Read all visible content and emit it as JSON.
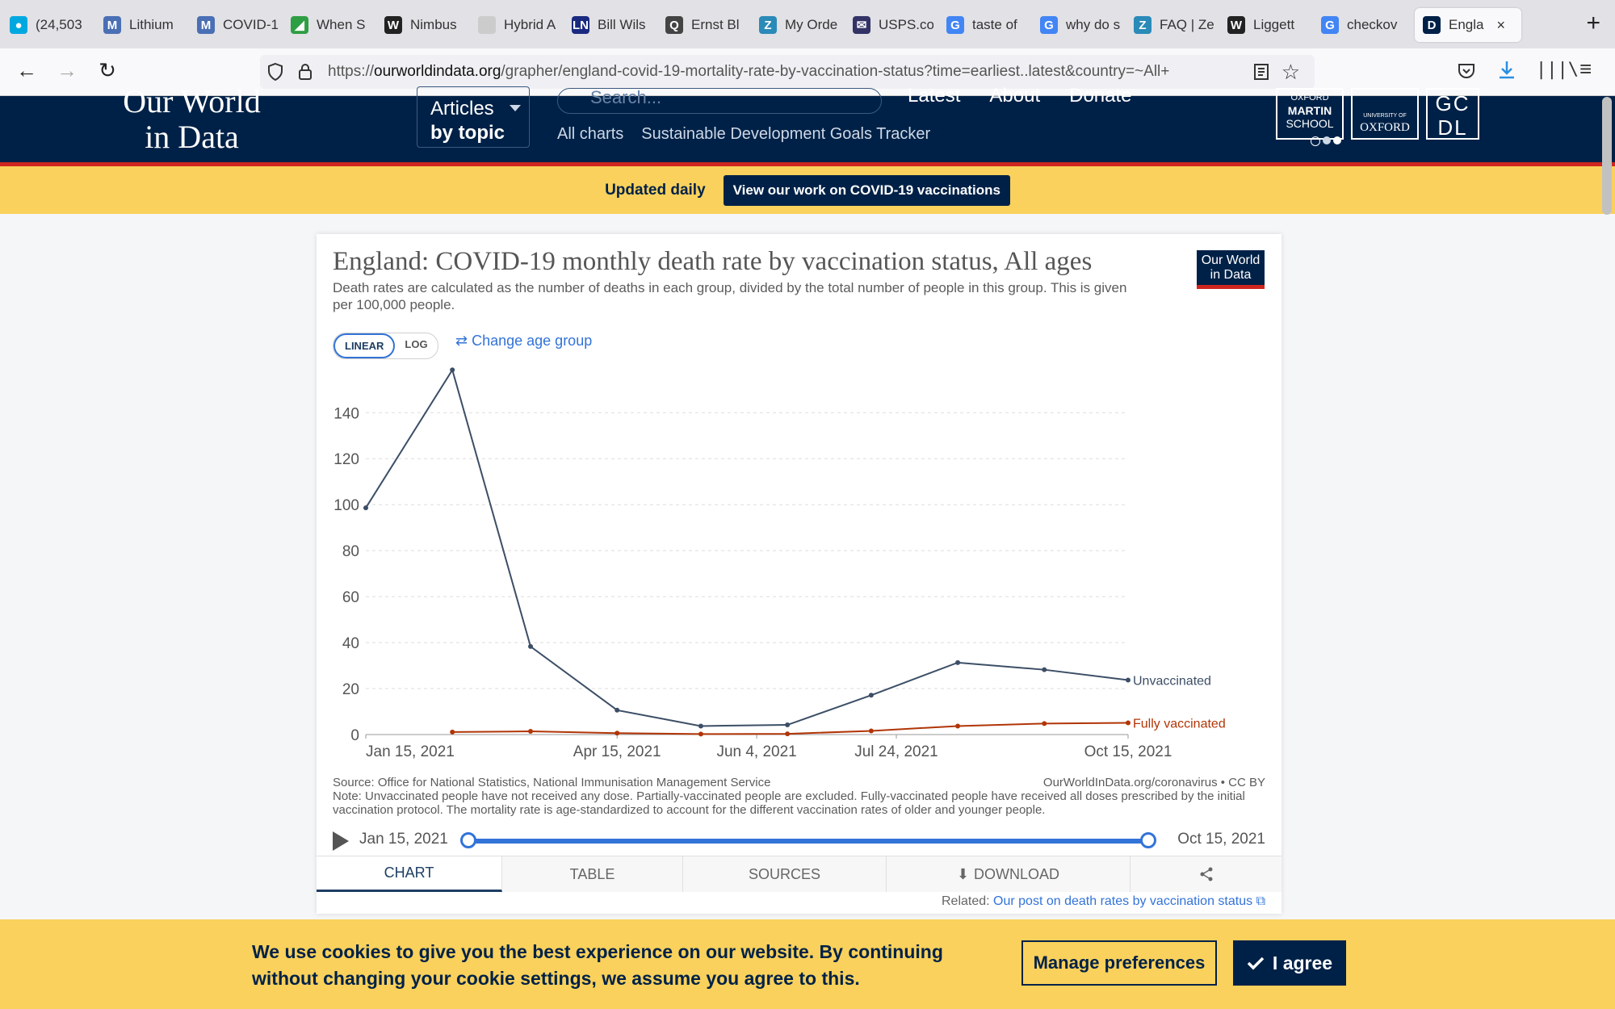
{
  "browser": {
    "tabs": [
      {
        "label": "(24,503",
        "icon": "att-icon",
        "color": "#00a8e0"
      },
      {
        "label": "Lithium",
        "icon": "m-icon",
        "color": "#4a6fb5"
      },
      {
        "label": "COVID-1",
        "icon": "m-icon",
        "color": "#4a6fb5"
      },
      {
        "label": "When S",
        "icon": "leaf-icon",
        "color": "#2e9e44"
      },
      {
        "label": "Nimbus",
        "icon": "w-icon",
        "color": "#222222"
      },
      {
        "label": "Hybrid A",
        "icon": "blank-icon",
        "color": "#cccccc"
      },
      {
        "label": "Bill Wils",
        "icon": "ln-icon",
        "color": "#1a2a80"
      },
      {
        "label": "Ernst Bl",
        "icon": "q-icon",
        "color": "#444444"
      },
      {
        "label": "My Orde",
        "icon": "z-icon",
        "color": "#2a8ab8"
      },
      {
        "label": "USPS.co",
        "icon": "usps-icon",
        "color": "#333366"
      },
      {
        "label": "taste of",
        "icon": "google-icon",
        "color": "#4285f4"
      },
      {
        "label": "why do s",
        "icon": "google-icon",
        "color": "#4285f4"
      },
      {
        "label": "FAQ | Ze",
        "icon": "z-icon",
        "color": "#2a8ab8"
      },
      {
        "label": "Liggett",
        "icon": "w-icon",
        "color": "#222222"
      },
      {
        "label": "checkov",
        "icon": "google-icon",
        "color": "#4285f4"
      },
      {
        "label": "Engla",
        "icon": "owid-icon",
        "color": "#002147"
      }
    ],
    "url_prefix": "https://",
    "url_domain": "ourworldindata.org",
    "url_path": "/grapher/england-covid-19-mortality-rate-by-vaccination-status?time=earliest..latest&country=~All+"
  },
  "site": {
    "logo_line1": "Our World",
    "logo_line2": "in Data",
    "articles_line1": "Articles",
    "articles_line2": "by topic",
    "search_placeholder": "Search...",
    "top_links": [
      "Latest",
      "About",
      "Donate"
    ],
    "sub_links": [
      "All charts",
      "Sustainable Development Goals Tracker"
    ],
    "partner1_line1": "OXFORD",
    "partner1_line2": "MARTIN",
    "partner1_line3": "SCHOOL",
    "partner2_line1": "UNIVERSITY OF",
    "partner2_line2": "OXFORD",
    "partner3": "GC DL"
  },
  "banner": {
    "label": "Updated daily",
    "button": "View our work on COVID-19 vaccinations"
  },
  "chart_card": {
    "title": "England: COVID-19 monthly death rate by vaccination status, All ages",
    "subtitle": "Death rates are calculated as the number of deaths in each group, divided by the total number of people in this group. This is given per 100,000 people.",
    "badge_line1": "Our World",
    "badge_line2": "in Data",
    "scale_linear": "LINEAR",
    "scale_log": "LOG",
    "change_age": "Change age group",
    "source": "Source: Office for National Statistics, National Immunisation Management Service",
    "credit": "OurWorldInData.org/coronavirus • CC BY",
    "note": "Note: Unvaccinated people have not received any dose. Partially-vaccinated people are excluded. Fully-vaccinated people have received all doses prescribed by the initial vaccination protocol. The mortality rate is age-standardized to account for the different vaccination rates of older and younger people.",
    "timeline_start": "Jan 15, 2021",
    "timeline_end": "Oct 15, 2021",
    "tabs": [
      "CHART",
      "TABLE",
      "SOURCES",
      "DOWNLOAD",
      ""
    ],
    "related_label": "Related:",
    "related_link": "Our post on death rates by vaccination status"
  },
  "chart_data": {
    "type": "line",
    "x": [
      "2021-01-15",
      "2021-02-15",
      "2021-03-15",
      "2021-04-15",
      "2021-05-15",
      "2021-06-15",
      "2021-07-15",
      "2021-08-15",
      "2021-09-15",
      "2021-10-15"
    ],
    "x_ticks": [
      "Jan 15, 2021",
      "Apr 15, 2021",
      "Jun 4, 2021",
      "Jul 24, 2021",
      "Oct 15, 2021"
    ],
    "x_tick_dates": [
      "2021-01-15",
      "2021-04-15",
      "2021-06-04",
      "2021-07-24",
      "2021-10-15"
    ],
    "y_ticks": [
      0,
      20,
      40,
      60,
      80,
      100,
      120,
      140
    ],
    "ylim": [
      0,
      158
    ],
    "series": [
      {
        "name": "Unvaccinated",
        "color": "#3c4e66",
        "values": [
          98.6,
          158.6,
          38.3,
          10.6,
          3.7,
          4.2,
          17.1,
          31.3,
          28.2,
          23.7
        ]
      },
      {
        "name": "Fully vaccinated",
        "color": "#b13507",
        "values": [
          null,
          1.1,
          1.4,
          0.6,
          0.2,
          0.3,
          1.6,
          3.7,
          4.8,
          5.1
        ]
      }
    ],
    "grid": true,
    "legend": "line-end labels"
  },
  "cookie": {
    "text": "We use cookies to give you the best experience on our website. By continuing without changing your cookie settings, we assume you agree to this.",
    "manage": "Manage preferences",
    "agree": "I agree"
  }
}
